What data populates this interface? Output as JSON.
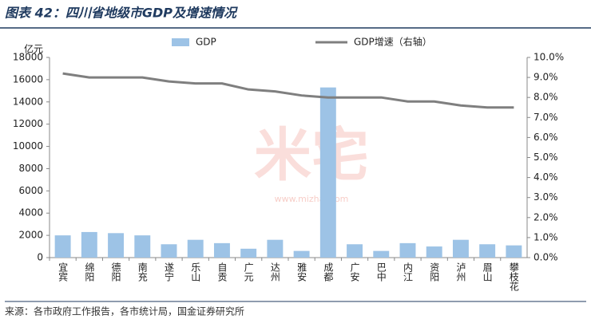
{
  "title": "图表 42：四川省地级市GDP及增速情况",
  "source": "来源：各市政府工作报告，各市统计局，国金证券研究所",
  "watermark": "米宅",
  "watermark_url": "www.mizhai.com",
  "chart_data": {
    "type": "bar-line",
    "y_label": "亿元",
    "categories": [
      "宜宾",
      "绵阳",
      "德阳",
      "南充",
      "遂宁",
      "乐山",
      "自贡",
      "广元",
      "达州",
      "雅安",
      "成都",
      "广安",
      "巴中",
      "内江",
      "资阳",
      "泸州",
      "眉山",
      "攀枝花"
    ],
    "series": [
      {
        "name": "GDP",
        "type": "bar",
        "color": "#9dc3e6",
        "values": [
          2000,
          2300,
          2200,
          2000,
          1200,
          1600,
          1300,
          800,
          1600,
          600,
          15300,
          1200,
          600,
          1300,
          1000,
          1600,
          1200,
          1100
        ]
      },
      {
        "name": "GDP增速（右轴）",
        "type": "line",
        "axis": "y2",
        "color": "#7f7f7f",
        "values": [
          9.2,
          9.0,
          9.0,
          9.0,
          8.8,
          8.7,
          8.7,
          8.4,
          8.3,
          8.1,
          8.0,
          8.0,
          8.0,
          7.8,
          7.8,
          7.6,
          7.5,
          7.5
        ]
      }
    ],
    "ylim": [
      0,
      18000
    ],
    "yticks": [
      0,
      2000,
      4000,
      6000,
      8000,
      10000,
      12000,
      14000,
      16000,
      18000
    ],
    "y2lim": [
      0,
      10
    ],
    "y2ticks": [
      {
        "value": 0,
        "label": "0.0%"
      },
      {
        "value": 1,
        "label": "1.0%"
      },
      {
        "value": 2,
        "label": "2.0%"
      },
      {
        "value": 3,
        "label": "3.0%"
      },
      {
        "value": 4,
        "label": "4.0%"
      },
      {
        "value": 5,
        "label": "5.0%"
      },
      {
        "value": 6,
        "label": "6.0%"
      },
      {
        "value": 7,
        "label": "7.0%"
      },
      {
        "value": 8,
        "label": "8.0%"
      },
      {
        "value": 9,
        "label": "9.0%"
      },
      {
        "value": 10,
        "label": "10.0%"
      }
    ]
  }
}
